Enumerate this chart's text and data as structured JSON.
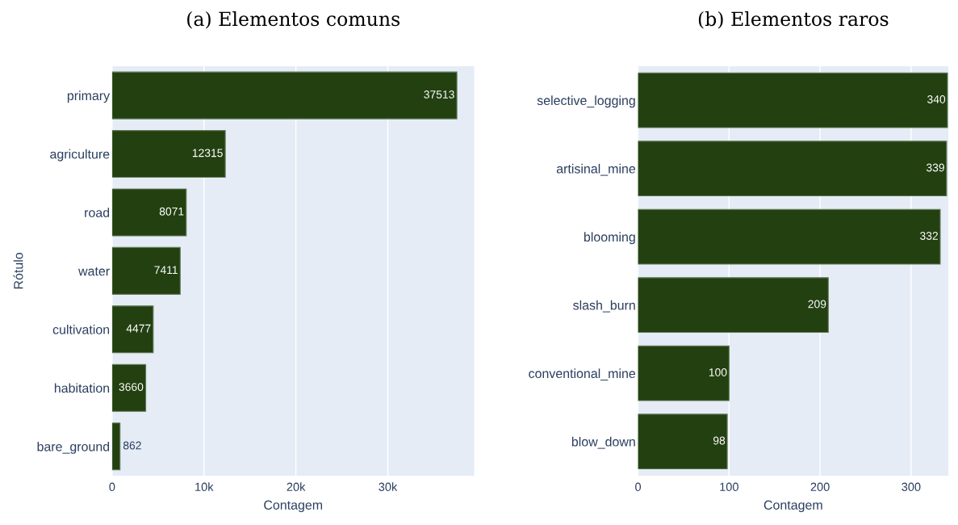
{
  "chart_data": [
    {
      "type": "bar",
      "orientation": "horizontal",
      "title": "(a) Elementos comuns",
      "xlabel": "Contagem",
      "ylabel": "Rótulo",
      "categories": [
        "primary",
        "agriculture",
        "road",
        "water",
        "cultivation",
        "habitation",
        "bare_ground"
      ],
      "values": [
        37513,
        12315,
        8071,
        7411,
        4477,
        3660,
        862
      ],
      "color": "#234011",
      "xlim": [
        0,
        39400
      ],
      "xticks": [
        0,
        {
          "value": 10000,
          "label": "10k"
        },
        {
          "value": 20000,
          "label": "20k"
        },
        {
          "value": 30000,
          "label": "30k"
        }
      ],
      "grid": "x",
      "data_labels": true
    },
    {
      "type": "bar",
      "orientation": "horizontal",
      "title": "(b) Elementos raros",
      "xlabel": "Contagem",
      "categories": [
        "selective_logging",
        "artisinal_mine",
        "blooming",
        "slash_burn",
        "conventional_mine",
        "blow_down"
      ],
      "values": [
        340,
        339,
        332,
        209,
        100,
        98
      ],
      "color": "#234011",
      "xlim": [
        0,
        341
      ],
      "xticks": [
        0,
        100,
        200,
        300
      ],
      "grid": "x",
      "data_labels": true
    }
  ]
}
